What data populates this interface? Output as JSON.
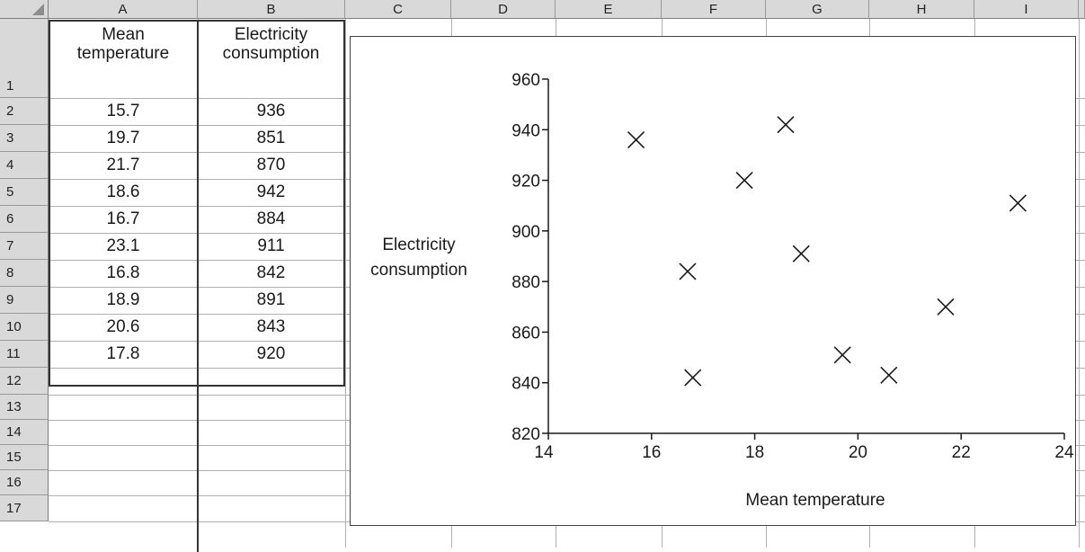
{
  "columns": [
    "A",
    "B",
    "C",
    "D",
    "E",
    "F",
    "G",
    "H",
    "I"
  ],
  "rows": [
    "1",
    "2",
    "3",
    "4",
    "5",
    "6",
    "7",
    "8",
    "9",
    "10",
    "11",
    "12",
    "13",
    "14",
    "15",
    "16",
    "17"
  ],
  "table": {
    "header_a_line1": "Mean",
    "header_a_line2": "temperature",
    "header_b_line1": "Electricity",
    "header_b_line2": "consumption",
    "records": [
      {
        "a": "15.7",
        "b": "936"
      },
      {
        "a": "19.7",
        "b": "851"
      },
      {
        "a": "21.7",
        "b": "870"
      },
      {
        "a": "18.6",
        "b": "942"
      },
      {
        "a": "16.7",
        "b": "884"
      },
      {
        "a": "23.1",
        "b": "911"
      },
      {
        "a": "16.8",
        "b": "842"
      },
      {
        "a": "18.9",
        "b": "891"
      },
      {
        "a": "20.6",
        "b": "843"
      },
      {
        "a": "17.8",
        "b": "920"
      }
    ]
  },
  "chart_data": {
    "type": "scatter",
    "xlabel": "Mean temperature",
    "ylabel_line1": "Electricity",
    "ylabel_line2": "consumption",
    "xlim": [
      14,
      24
    ],
    "ylim": [
      820,
      960
    ],
    "xticks": [
      14,
      16,
      18,
      20,
      22,
      24
    ],
    "yticks": [
      820,
      840,
      860,
      880,
      900,
      920,
      940,
      960
    ],
    "marker": "x",
    "grid": false,
    "legend": "none",
    "points": [
      {
        "x": 15.7,
        "y": 936
      },
      {
        "x": 19.7,
        "y": 851
      },
      {
        "x": 21.7,
        "y": 870
      },
      {
        "x": 18.6,
        "y": 942
      },
      {
        "x": 16.7,
        "y": 884
      },
      {
        "x": 23.1,
        "y": 911
      },
      {
        "x": 16.8,
        "y": 842
      },
      {
        "x": 18.9,
        "y": 891
      },
      {
        "x": 20.6,
        "y": 843
      },
      {
        "x": 17.8,
        "y": 920
      }
    ]
  }
}
